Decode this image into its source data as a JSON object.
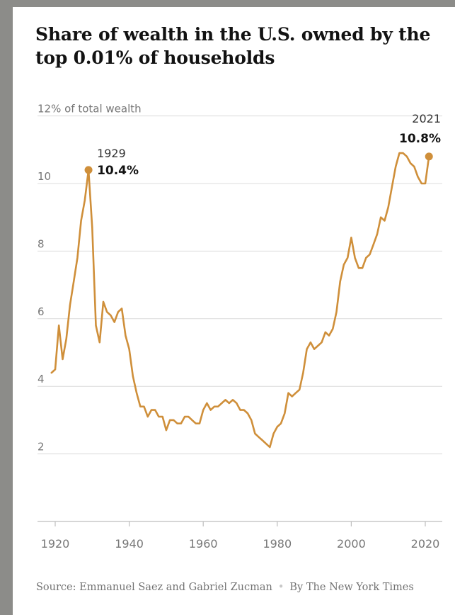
{
  "title": "Share of wealth in the U.S. owned by the top 0.01% of households",
  "source": {
    "prefix": "Source:",
    "text": "Emmanuel Saez and Gabriel Zucman",
    "separator": "•",
    "byline": "By The New York Times"
  },
  "colors": {
    "line": "#cf8f3a",
    "grid": "#dcdcdc",
    "text": "#121212",
    "muted": "#777777",
    "background": "#8c8c89"
  },
  "chart_data": {
    "type": "line",
    "title": "Share of wealth in the U.S. owned by the top 0.01% of households",
    "ylabel": "12% of total wealth",
    "xlabel": "",
    "xlim": [
      1918,
      2022
    ],
    "ylim": [
      0,
      12
    ],
    "xticks": [
      1920,
      1940,
      1960,
      1980,
      2000,
      2020
    ],
    "yticks": [
      2,
      4,
      6,
      8,
      10,
      12
    ],
    "ytick_labels": [
      "2",
      "4",
      "6",
      "8",
      "10",
      "12% of total wealth"
    ],
    "grid": true,
    "legend": "none",
    "series": [
      {
        "x": [
          1919,
          1920,
          1921,
          1922,
          1923,
          1924,
          1925,
          1926,
          1927,
          1928,
          1929,
          1930,
          1931,
          1932,
          1933,
          1934,
          1935,
          1936,
          1937,
          1938,
          1939,
          1940,
          1941,
          1942,
          1943,
          1944,
          1945,
          1946,
          1947,
          1948,
          1949,
          1950,
          1951,
          1952,
          1953,
          1954,
          1955,
          1956,
          1957,
          1958,
          1959,
          1960,
          1961,
          1962,
          1963,
          1964,
          1965,
          1966,
          1967,
          1968,
          1969,
          1970,
          1971,
          1972,
          1973,
          1974,
          1975,
          1976,
          1977,
          1978,
          1979,
          1980,
          1981,
          1982,
          1983,
          1984,
          1985,
          1986,
          1987,
          1988,
          1989,
          1990,
          1991,
          1992,
          1993,
          1994,
          1995,
          1996,
          1997,
          1998,
          1999,
          2000,
          2001,
          2002,
          2003,
          2004,
          2005,
          2006,
          2007,
          2008,
          2009,
          2010,
          2011,
          2012,
          2013,
          2014,
          2015,
          2016,
          2017,
          2018,
          2019,
          2020,
          2021
        ],
        "values": [
          4.4,
          4.5,
          5.8,
          4.8,
          5.4,
          6.4,
          7.1,
          7.8,
          8.9,
          9.5,
          10.4,
          8.7,
          5.8,
          5.3,
          6.5,
          6.2,
          6.1,
          5.9,
          6.2,
          6.3,
          5.5,
          5.1,
          4.3,
          3.8,
          3.4,
          3.4,
          3.1,
          3.3,
          3.3,
          3.1,
          3.1,
          2.7,
          3.0,
          3.0,
          2.9,
          2.9,
          3.1,
          3.1,
          3.0,
          2.9,
          2.9,
          3.3,
          3.5,
          3.3,
          3.4,
          3.4,
          3.5,
          3.6,
          3.5,
          3.6,
          3.5,
          3.3,
          3.3,
          3.2,
          3.0,
          2.6,
          2.5,
          2.4,
          2.3,
          2.2,
          2.6,
          2.8,
          2.9,
          3.2,
          3.8,
          3.7,
          3.8,
          3.9,
          4.4,
          5.1,
          5.3,
          5.1,
          5.2,
          5.3,
          5.6,
          5.5,
          5.7,
          6.2,
          7.1,
          7.6,
          7.8,
          8.4,
          7.8,
          7.5,
          7.5,
          7.8,
          7.9,
          8.2,
          8.5,
          9.0,
          8.9,
          9.3,
          9.9,
          10.5,
          10.9,
          10.9,
          10.8,
          10.6,
          10.5,
          10.2,
          10.0,
          10.0,
          10.8
        ]
      }
    ],
    "annotations": [
      {
        "year": "1929",
        "value_label": "10.4%",
        "x": 1929,
        "y": 10.4
      },
      {
        "year": "2021",
        "value_label": "10.8%",
        "x": 2021,
        "y": 10.8
      }
    ]
  }
}
